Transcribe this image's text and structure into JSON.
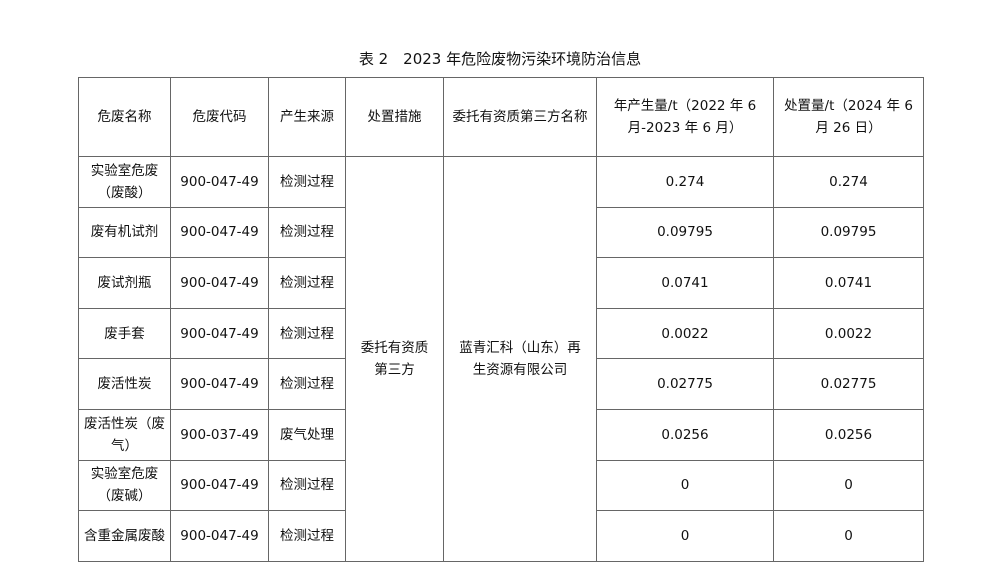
{
  "title": "表 2　2023 年危险废物污染环境防治信息",
  "headers": [
    "危废名称",
    "危废代码",
    "产生来源",
    "处置措施",
    "委托有资质第三方名称",
    "年产生量/t（2022 年 6 月-2023 年 6 月）",
    "处置量/t（2024 年 6 月 26 日）"
  ],
  "disposal_measure": "委托有资质第三方",
  "third_party": "蓝青汇科（山东）再生资源有限公司",
  "rows": [
    {
      "name": "实验室危废（废酸）",
      "code": "900-047-49",
      "source": "检测过程",
      "annual": "0.274",
      "disposed": "0.274"
    },
    {
      "name": "废有机试剂",
      "code": "900-047-49",
      "source": "检测过程",
      "annual": "0.09795",
      "disposed": "0.09795"
    },
    {
      "name": "废试剂瓶",
      "code": "900-047-49",
      "source": "检测过程",
      "annual": "0.0741",
      "disposed": "0.0741"
    },
    {
      "name": "废手套",
      "code": "900-047-49",
      "source": "检测过程",
      "annual": "0.0022",
      "disposed": "0.0022"
    },
    {
      "name": "废活性炭",
      "code": "900-047-49",
      "source": "检测过程",
      "annual": "0.02775",
      "disposed": "0.02775"
    },
    {
      "name": "废活性炭（废气）",
      "code": "900-037-49",
      "source": "废气处理",
      "annual": "0.0256",
      "disposed": "0.0256"
    },
    {
      "name": "实验室危废（废碱）",
      "code": "900-047-49",
      "source": "检测过程",
      "annual": "0",
      "disposed": "0"
    },
    {
      "name": "含重金属废酸",
      "code": "900-047-49",
      "source": "检测过程",
      "annual": "0",
      "disposed": "0"
    }
  ]
}
